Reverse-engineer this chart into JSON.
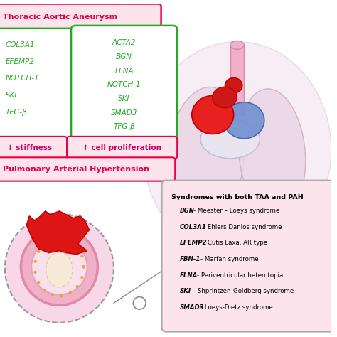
{
  "title_taa": "Thoracic Aortic Aneurysm",
  "title_pah": "Pulmonary Arterial Hypertension",
  "title_taa_color": "#e8004a",
  "title_pah_color": "#e8004a",
  "bg_color": "#ffffff",
  "light_pink_bg": "#fce4ec",
  "box_left_genes": [
    "COL3A1",
    "EFEMP2",
    "NOTCH-1",
    "SKI",
    "TFG-β"
  ],
  "box_right_genes": [
    "ACTA2",
    "BGN",
    "FLNA",
    "NOTCH-1",
    "SKI",
    "SMAD3",
    "TFG-β"
  ],
  "gene_color": "#22aa22",
  "box_border_color_left": "#22aa22",
  "box_border_color_right": "#22aa22",
  "stiffness_label": "↓ stiffness",
  "cell_prolif_label": "↑ cell proliferation",
  "badge_bg": "#fce4ec",
  "badge_text_color": "#cc0066",
  "syndromes_title": "Syndromes with both TAA and PAH",
  "syndromes": [
    [
      "BGN",
      "Meester – Loeys syndrome"
    ],
    [
      "COL3A1",
      "Ehlers Danlos syndrome"
    ],
    [
      "EFEMP2",
      "Cutis Laxa, AR type"
    ],
    [
      "FBN-1",
      "Marfan syndrome"
    ],
    [
      "FLNA",
      "Periventricular heterotopia"
    ],
    [
      "SKI",
      "Shprintzen-Goldberg syndrome"
    ],
    [
      "SMAD3",
      "Loeys-Dietz syndrome"
    ]
  ],
  "syndrome_box_border": "#aaaaaa",
  "syndrome_box_bg": "#fce4ec",
  "lung_fill": "#e8c8e0",
  "lung_outline": "#d0a8c8"
}
